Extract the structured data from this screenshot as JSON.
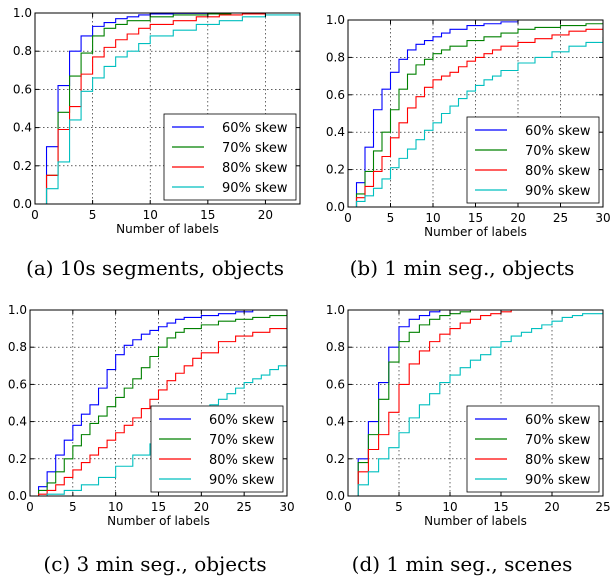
{
  "colors": {
    "s60": "#0000ff",
    "s70": "#008000",
    "s80": "#ff0000",
    "s90": "#00bfbf"
  },
  "chart_data": [
    {
      "type": "line",
      "caption": "(a) 10s segments, objects",
      "xlabel": "Number of labels",
      "ylabel": "",
      "xlim": [
        0,
        23
      ],
      "ylim": [
        0,
        1
      ],
      "xticks": [
        0,
        5,
        10,
        15,
        20
      ],
      "yticks": [
        0,
        0.2,
        0.4,
        0.6,
        0.8,
        1.0
      ],
      "ytick_labels": [
        "0.0",
        "0.2",
        "0.4",
        "0.6",
        "0.8",
        "1.0"
      ],
      "grid": true,
      "legend": "lower-right",
      "series": [
        {
          "name": "60% skew",
          "color": "#0000ff",
          "x": [
            1,
            2,
            3,
            4,
            5,
            6,
            7,
            8,
            9,
            10,
            12,
            15,
            23
          ],
          "y": [
            0.3,
            0.62,
            0.8,
            0.88,
            0.93,
            0.95,
            0.97,
            0.98,
            0.99,
            0.995,
            0.998,
            1.0,
            1.0
          ]
        },
        {
          "name": "70% skew",
          "color": "#008000",
          "x": [
            1,
            2,
            3,
            4,
            5,
            6,
            7,
            8,
            10,
            12,
            15,
            17,
            23
          ],
          "y": [
            0.15,
            0.48,
            0.67,
            0.79,
            0.88,
            0.92,
            0.94,
            0.96,
            0.98,
            0.99,
            0.995,
            1.0,
            1.0
          ]
        },
        {
          "name": "80% skew",
          "color": "#ff0000",
          "x": [
            1,
            2,
            3,
            4,
            5,
            6,
            7,
            8,
            9,
            10,
            12,
            14,
            16,
            18,
            20,
            23
          ],
          "y": [
            0.15,
            0.39,
            0.51,
            0.68,
            0.77,
            0.82,
            0.86,
            0.89,
            0.92,
            0.94,
            0.96,
            0.98,
            0.99,
            0.995,
            1.0,
            1.0
          ]
        },
        {
          "name": "90% skew",
          "color": "#00bfbf",
          "x": [
            1,
            2,
            3,
            4,
            5,
            6,
            7,
            8,
            9,
            10,
            12,
            14,
            16,
            18,
            20,
            23
          ],
          "y": [
            0.08,
            0.22,
            0.44,
            0.59,
            0.66,
            0.72,
            0.77,
            0.8,
            0.84,
            0.88,
            0.91,
            0.94,
            0.96,
            0.98,
            0.99,
            1.0
          ]
        }
      ]
    },
    {
      "type": "line",
      "caption": "(b) 1 min seg., objects",
      "xlabel": "Number of labels",
      "ylabel": "",
      "xlim": [
        0,
        30
      ],
      "ylim": [
        0,
        1
      ],
      "xticks": [
        0,
        5,
        10,
        15,
        20,
        25,
        30
      ],
      "yticks": [
        0,
        0.2,
        0.4,
        0.6,
        0.8,
        1.0
      ],
      "ytick_labels": [
        "0.0",
        "0.2",
        "0.4",
        "0.6",
        "0.8",
        "1.0"
      ],
      "grid": true,
      "legend": "lower-right",
      "series": [
        {
          "name": "60% skew",
          "color": "#0000ff",
          "x": [
            1,
            2,
            3,
            4,
            5,
            6,
            7,
            8,
            9,
            10,
            11,
            12,
            14,
            16,
            18,
            20,
            30
          ],
          "y": [
            0.13,
            0.32,
            0.52,
            0.63,
            0.72,
            0.79,
            0.84,
            0.87,
            0.89,
            0.91,
            0.93,
            0.95,
            0.97,
            0.98,
            0.99,
            1.0,
            1.0
          ]
        },
        {
          "name": "70% skew",
          "color": "#008000",
          "x": [
            1,
            2,
            3,
            4,
            5,
            6,
            7,
            8,
            9,
            10,
            11,
            12,
            14,
            16,
            18,
            20,
            22,
            25,
            28,
            30
          ],
          "y": [
            0.07,
            0.19,
            0.3,
            0.4,
            0.52,
            0.63,
            0.71,
            0.76,
            0.79,
            0.82,
            0.84,
            0.86,
            0.89,
            0.91,
            0.93,
            0.95,
            0.96,
            0.97,
            0.98,
            0.98
          ]
        },
        {
          "name": "80% skew",
          "color": "#ff0000",
          "x": [
            1,
            2,
            3,
            4,
            5,
            6,
            7,
            8,
            9,
            10,
            11,
            12,
            13,
            14,
            15,
            16,
            17,
            18,
            20,
            22,
            24,
            26,
            28,
            30
          ],
          "y": [
            0.05,
            0.11,
            0.19,
            0.27,
            0.37,
            0.45,
            0.53,
            0.59,
            0.64,
            0.68,
            0.7,
            0.72,
            0.75,
            0.78,
            0.8,
            0.82,
            0.84,
            0.86,
            0.88,
            0.9,
            0.92,
            0.94,
            0.95,
            0.96
          ]
        },
        {
          "name": "90% skew",
          "color": "#00bfbf",
          "x": [
            1,
            2,
            3,
            4,
            5,
            6,
            7,
            8,
            9,
            10,
            11,
            12,
            13,
            14,
            15,
            16,
            17,
            18,
            20,
            22,
            24,
            26,
            28,
            30
          ],
          "y": [
            0.03,
            0.06,
            0.1,
            0.15,
            0.21,
            0.26,
            0.31,
            0.36,
            0.41,
            0.45,
            0.5,
            0.54,
            0.58,
            0.62,
            0.65,
            0.68,
            0.7,
            0.73,
            0.77,
            0.8,
            0.83,
            0.86,
            0.88,
            0.91
          ]
        }
      ]
    },
    {
      "type": "line",
      "caption": "(c) 3 min seg., objects",
      "xlabel": "Number of labels",
      "ylabel": "",
      "xlim": [
        0,
        30
      ],
      "ylim": [
        0,
        1
      ],
      "xticks": [
        0,
        5,
        10,
        15,
        20,
        25,
        30
      ],
      "yticks": [
        0,
        0.2,
        0.4,
        0.6,
        0.8,
        1.0
      ],
      "ytick_labels": [
        "0.0",
        "0.2",
        "0.4",
        "0.6",
        "0.8",
        "1.0"
      ],
      "grid": true,
      "legend": "lower-right",
      "series": [
        {
          "name": "60% skew",
          "color": "#0000ff",
          "x": [
            1,
            2,
            3,
            4,
            5,
            6,
            7,
            8,
            9,
            10,
            11,
            12,
            13,
            14,
            15,
            16,
            17,
            18,
            20,
            22,
            24,
            26,
            28,
            30
          ],
          "y": [
            0.05,
            0.13,
            0.22,
            0.3,
            0.38,
            0.44,
            0.49,
            0.58,
            0.68,
            0.76,
            0.81,
            0.84,
            0.87,
            0.89,
            0.91,
            0.93,
            0.95,
            0.96,
            0.97,
            0.98,
            0.99,
            1.0,
            1.0,
            1.0
          ]
        },
        {
          "name": "70% skew",
          "color": "#008000",
          "x": [
            1,
            2,
            3,
            4,
            5,
            6,
            7,
            8,
            9,
            10,
            11,
            12,
            13,
            14,
            15,
            16,
            17,
            18,
            20,
            22,
            24,
            26,
            28,
            30
          ],
          "y": [
            0.03,
            0.07,
            0.13,
            0.2,
            0.27,
            0.33,
            0.39,
            0.43,
            0.48,
            0.53,
            0.58,
            0.63,
            0.69,
            0.75,
            0.8,
            0.85,
            0.88,
            0.9,
            0.92,
            0.94,
            0.95,
            0.96,
            0.97,
            0.98
          ]
        },
        {
          "name": "80% skew",
          "color": "#ff0000",
          "x": [
            1,
            2,
            3,
            4,
            5,
            6,
            7,
            8,
            9,
            10,
            11,
            12,
            13,
            14,
            15,
            16,
            17,
            18,
            19,
            20,
            22,
            24,
            26,
            28,
            30
          ],
          "y": [
            0.01,
            0.03,
            0.06,
            0.1,
            0.14,
            0.18,
            0.22,
            0.26,
            0.3,
            0.34,
            0.38,
            0.42,
            0.47,
            0.52,
            0.57,
            0.62,
            0.66,
            0.7,
            0.74,
            0.77,
            0.83,
            0.86,
            0.88,
            0.9,
            0.92
          ]
        },
        {
          "name": "90% skew",
          "color": "#00bfbf",
          "x": [
            2,
            4,
            6,
            8,
            10,
            12,
            14,
            16,
            18,
            19,
            20,
            21,
            22,
            23,
            24,
            25,
            26,
            27,
            28,
            29,
            30
          ],
          "y": [
            0.01,
            0.03,
            0.06,
            0.1,
            0.16,
            0.22,
            0.28,
            0.34,
            0.4,
            0.43,
            0.46,
            0.49,
            0.52,
            0.55,
            0.58,
            0.61,
            0.63,
            0.65,
            0.68,
            0.7,
            0.73
          ]
        }
      ]
    },
    {
      "type": "line",
      "caption": "(d) 1 min seg., scenes",
      "xlabel": "Number of labels",
      "ylabel": "",
      "xlim": [
        0,
        25
      ],
      "ylim": [
        0,
        1
      ],
      "xticks": [
        0,
        5,
        10,
        15,
        20,
        25
      ],
      "yticks": [
        0,
        0.2,
        0.4,
        0.6,
        0.8,
        1.0
      ],
      "ytick_labels": [
        "0.0",
        "0.2",
        "0.4",
        "0.6",
        "0.8",
        "1.0"
      ],
      "grid": true,
      "legend": "lower-right",
      "series": [
        {
          "name": "60% skew",
          "color": "#0000ff",
          "x": [
            1,
            2,
            3,
            4,
            5,
            6,
            7,
            8,
            9,
            10,
            25
          ],
          "y": [
            0.2,
            0.4,
            0.61,
            0.8,
            0.91,
            0.95,
            0.97,
            0.99,
            1.0,
            1.0,
            1.0
          ]
        },
        {
          "name": "70% skew",
          "color": "#008000",
          "x": [
            1,
            2,
            3,
            4,
            5,
            6,
            7,
            8,
            9,
            10,
            11,
            12,
            14,
            25
          ],
          "y": [
            0.18,
            0.33,
            0.52,
            0.72,
            0.83,
            0.88,
            0.92,
            0.95,
            0.97,
            0.98,
            0.99,
            1.0,
            1.0,
            1.0
          ]
        },
        {
          "name": "80% skew",
          "color": "#ff0000",
          "x": [
            1,
            2,
            3,
            4,
            5,
            6,
            7,
            8,
            9,
            10,
            11,
            12,
            13,
            14,
            15,
            16,
            17,
            25
          ],
          "y": [
            0.13,
            0.25,
            0.33,
            0.45,
            0.6,
            0.71,
            0.78,
            0.83,
            0.87,
            0.9,
            0.93,
            0.95,
            0.97,
            0.98,
            0.99,
            1.0,
            1.0,
            1.0
          ]
        },
        {
          "name": "90% skew",
          "color": "#00bfbf",
          "x": [
            1,
            2,
            3,
            4,
            5,
            6,
            7,
            8,
            9,
            10,
            11,
            12,
            13,
            14,
            15,
            16,
            17,
            18,
            19,
            20,
            21,
            22,
            23,
            25
          ],
          "y": [
            0.06,
            0.13,
            0.2,
            0.26,
            0.34,
            0.42,
            0.49,
            0.55,
            0.61,
            0.65,
            0.69,
            0.73,
            0.76,
            0.8,
            0.83,
            0.86,
            0.88,
            0.9,
            0.92,
            0.94,
            0.96,
            0.97,
            0.98,
            1.0
          ]
        }
      ]
    }
  ]
}
